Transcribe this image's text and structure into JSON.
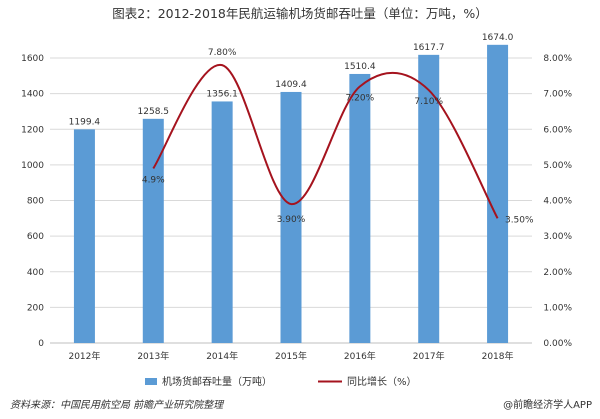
{
  "chart_data": {
    "type": "bar+line",
    "title": "图表2：2012-2018年民航运输机场货邮吞吐量（单位：万吨，%）",
    "categories": [
      "2012年",
      "2013年",
      "2014年",
      "2015年",
      "2016年",
      "2017年",
      "2018年"
    ],
    "series": [
      {
        "name": "机场货邮吞吐量（万吨）",
        "type": "bar",
        "axis": "left",
        "color": "#5b9bd5",
        "values": [
          1199.4,
          1258.5,
          1356.1,
          1409.4,
          1510.4,
          1617.7,
          1674.0
        ],
        "labels": [
          "1199.4",
          "1258.5",
          "1356.1",
          "1409.4",
          "1510.4",
          "1617.7",
          "1674.0"
        ]
      },
      {
        "name": "同比增长（%）",
        "type": "line",
        "axis": "right",
        "color": "#a5131e",
        "values": [
          null,
          4.9,
          7.8,
          3.9,
          7.2,
          7.1,
          3.5
        ],
        "labels": [
          "",
          "4.9%",
          "7.80%",
          "3.90%",
          "7.20%",
          "7.10%",
          "3.50%"
        ]
      }
    ],
    "y_left": {
      "min": 0,
      "max": 1600,
      "step": 200,
      "ticks": [
        "0",
        "200",
        "400",
        "600",
        "800",
        "1000",
        "1200",
        "1400",
        "1600"
      ]
    },
    "y_right": {
      "min": 0,
      "max": 8,
      "step": 1,
      "ticks": [
        "0.00%",
        "1.00%",
        "2.00%",
        "3.00%",
        "4.00%",
        "5.00%",
        "6.00%",
        "7.00%",
        "8.00%"
      ]
    },
    "grid": true,
    "legend_position": "bottom"
  },
  "footer": {
    "source": "资料来源：中国民用航空局 前瞻产业研究院整理",
    "brand": "@前瞻经济学人APP"
  }
}
